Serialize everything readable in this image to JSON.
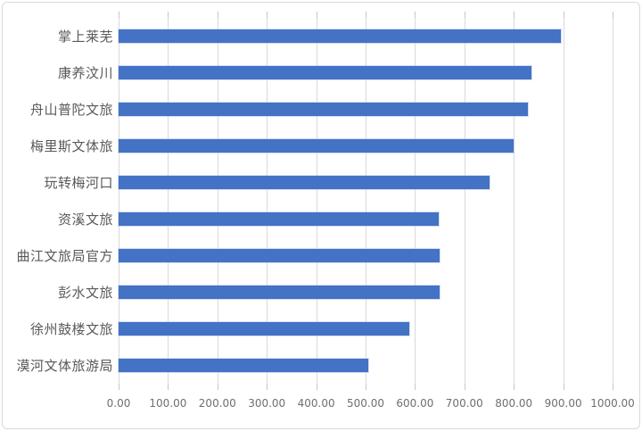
{
  "chart_data": {
    "type": "bar",
    "orientation": "horizontal",
    "title": "",
    "xlabel": "",
    "ylabel": "",
    "categories": [
      "掌上莱芜",
      "康养汶川",
      "舟山普陀文旅",
      "梅里斯文体旅",
      "玩转梅河口",
      "资溪文旅",
      "曲江文旅局官方",
      "彭水文旅",
      "徐州鼓楼文旅",
      "漠河文体旅游局"
    ],
    "values": [
      895,
      835,
      828,
      800,
      750,
      648,
      650,
      650,
      588,
      505
    ],
    "xlim": [
      0,
      1000
    ],
    "x_tick_values": [
      0,
      100,
      200,
      300,
      400,
      500,
      600,
      700,
      800,
      900,
      1000
    ],
    "x_tick_labels": [
      "0.00",
      "100.00",
      "200.00",
      "300.00",
      "400.00",
      "500.00",
      "600.00",
      "700.00",
      "800.00",
      "900.00",
      "1000.00"
    ],
    "grid": true,
    "legend": false,
    "colors": {
      "bar": "#4472c4",
      "gridline": "#d9d9d9",
      "category_label": "#595959",
      "axis_label": "#6f6f6f",
      "chart_border": "#d9d9d9",
      "background": "#ffffff"
    }
  }
}
